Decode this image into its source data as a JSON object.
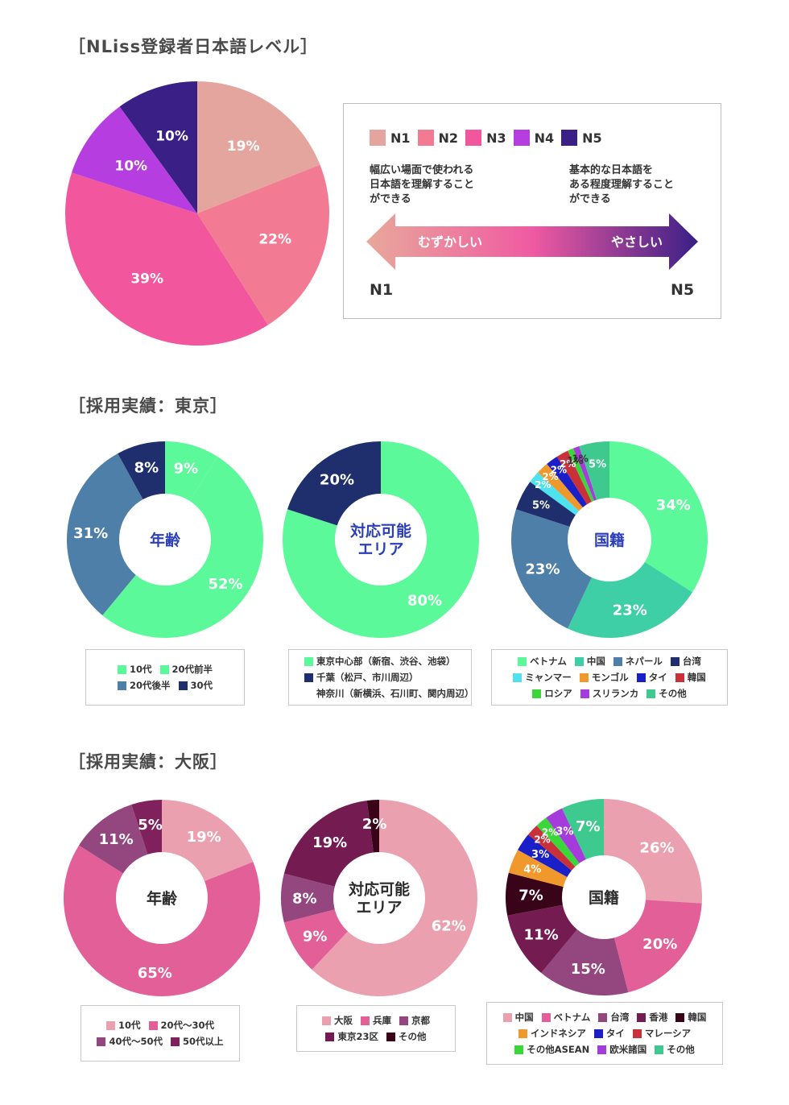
{
  "sections": {
    "level_title": "［NLiss登録者日本語レベル］",
    "tokyo_title": "［採用実績：東京］",
    "osaka_title": "［採用実績：大阪］"
  },
  "level_box": {
    "legend": [
      {
        "label": "N1",
        "color": "#e3a59d"
      },
      {
        "label": "N2",
        "color": "#f37a93"
      },
      {
        "label": "N3",
        "color": "#f2579e"
      },
      {
        "label": "N4",
        "color": "#b63ee0"
      },
      {
        "label": "N5",
        "color": "#3a1f86"
      }
    ],
    "desc_hard": "幅広い場面で使われる\n日本語を理解すること\nができる",
    "desc_easy": "基本的な日本語を\nある程度理解すること\nができる",
    "arrow_left": "むずかしい",
    "arrow_right": "やさしい",
    "end_left": "N1",
    "end_right": "N5"
  },
  "chart_data": [
    {
      "id": "level",
      "type": "pie",
      "title": "［NLiss登録者日本語レベル］",
      "categories": [
        "N1",
        "N2",
        "N3",
        "N4",
        "N5"
      ],
      "values": [
        19,
        22,
        39,
        10,
        10
      ],
      "labels": [
        "19%",
        "22%",
        "39%",
        "10%",
        "10%"
      ],
      "colors": [
        "#e3a59d",
        "#f37a93",
        "#f2579e",
        "#b63ee0",
        "#3a1f86"
      ],
      "label_colors": [
        "#fff",
        "#fff",
        "#fff",
        "#fff",
        "#fff"
      ]
    },
    {
      "id": "tokyo_age",
      "type": "pie",
      "title": "［採用実績：東京］",
      "center_label": "年齢",
      "categories": [
        "10代",
        "20代前半",
        "20代後半",
        "30代"
      ],
      "values": [
        9,
        52,
        31,
        8
      ],
      "labels": [
        "9%",
        "52%",
        "31%",
        "8%"
      ],
      "colors": [
        "#5cf99a",
        "#5cf99a",
        "#4d7fa8",
        "#1f2f6e"
      ],
      "label_colors": [
        "#fff",
        "#fff",
        "#fff",
        "#fff"
      ],
      "legend_colors": [
        "#5cf99a",
        "#5cf99a",
        "#4d7fa8",
        "#1f2f6e"
      ]
    },
    {
      "id": "tokyo_area",
      "type": "pie",
      "center_label": "対応可能\nエリア",
      "categories": [
        "東京中心部（新宿、渋谷、池袋）",
        "千葉（松戸、市川周辺）\n神奈川（新横浜、石川町、関内周辺）"
      ],
      "values": [
        80,
        20
      ],
      "labels": [
        "80%",
        "20%"
      ],
      "colors": [
        "#5cf99a",
        "#1f2f6e"
      ],
      "label_colors": [
        "#fff",
        "#fff"
      ],
      "legend_colors": [
        "#5cf99a",
        "#1f2f6e"
      ]
    },
    {
      "id": "tokyo_nationality",
      "type": "pie",
      "center_label": "国籍",
      "categories": [
        "ベトナム",
        "中国",
        "ネパール",
        "台湾",
        "ミャンマー",
        "モンゴル",
        "タイ",
        "韓国",
        "ロシア",
        "スリランカ",
        "その他"
      ],
      "values": [
        34,
        23,
        23,
        5,
        2,
        2,
        2,
        2,
        1,
        1,
        5
      ],
      "labels": [
        "34%",
        "23%",
        "23%",
        "5%",
        "2%",
        "2%",
        "2%",
        "2%",
        "1%",
        "1%",
        "5%"
      ],
      "colors": [
        "#5cf99a",
        "#3ecfa6",
        "#4d7fa8",
        "#1f2f6e",
        "#4de2ee",
        "#f0982c",
        "#1a1fc8",
        "#c9303a",
        "#3ad63a",
        "#a63bdc",
        "#3ec98e"
      ],
      "label_colors": [
        "#fff",
        "#fff",
        "#fff",
        "#fff",
        "#fff",
        "#fff",
        "#fff",
        "#fff",
        "#333",
        "#333",
        "#fff"
      ],
      "legend_colors": [
        "#5cf99a",
        "#3ecfa6",
        "#4d7fa8",
        "#1f2f6e",
        "#4de2ee",
        "#f0982c",
        "#1a1fc8",
        "#c9303a",
        "#3ad63a",
        "#a63bdc",
        "#3ec98e"
      ]
    },
    {
      "id": "osaka_age",
      "type": "pie",
      "title": "［採用実績：大阪］",
      "center_label": "年齢",
      "categories": [
        "10代",
        "20代〜30代",
        "40代〜50代",
        "50代以上"
      ],
      "values": [
        19,
        65,
        11,
        5
      ],
      "labels": [
        "19%",
        "65%",
        "11%",
        "5%"
      ],
      "colors": [
        "#eba0b0",
        "#e35f98",
        "#94467f",
        "#80205c"
      ],
      "label_colors": [
        "#fff",
        "#fff",
        "#fff",
        "#fff"
      ],
      "legend_colors": [
        "#eba0b0",
        "#e35f98",
        "#94467f",
        "#80205c"
      ]
    },
    {
      "id": "osaka_area",
      "type": "pie",
      "center_label": "対応可能\nエリア",
      "categories": [
        "大阪",
        "兵庫",
        "京都",
        "東京23区",
        "その他"
      ],
      "values": [
        62,
        9,
        8,
        19,
        2
      ],
      "labels": [
        "62%",
        "9%",
        "8%",
        "19%",
        "2%"
      ],
      "colors": [
        "#eba0b0",
        "#e35f98",
        "#94467f",
        "#741b52",
        "#3a0418"
      ],
      "label_colors": [
        "#fff",
        "#fff",
        "#fff",
        "#fff",
        "#fff"
      ],
      "legend_colors": [
        "#eba0b0",
        "#e35f98",
        "#94467f",
        "#741b52",
        "#3a0418"
      ]
    },
    {
      "id": "osaka_nationality",
      "type": "pie",
      "center_label": "国籍",
      "categories": [
        "中国",
        "ベトナム",
        "台湾",
        "香港",
        "韓国",
        "インドネシア",
        "タイ",
        "マレーシア",
        "その他ASEAN",
        "欧米諸国",
        "その他"
      ],
      "values": [
        26,
        20,
        15,
        11,
        7,
        4,
        3,
        2,
        2,
        3,
        7
      ],
      "labels": [
        "26%",
        "20%",
        "15%",
        "11%",
        "7%",
        "4%",
        "3%",
        "2%",
        "2%",
        "3%",
        "7%"
      ],
      "colors": [
        "#eba0b0",
        "#e35f98",
        "#94467f",
        "#741b52",
        "#3a0418",
        "#f0982c",
        "#1a1fc8",
        "#c9303a",
        "#3ad63a",
        "#a63bdc",
        "#3ec98e"
      ],
      "label_colors": [
        "#fff",
        "#fff",
        "#fff",
        "#fff",
        "#fff",
        "#fff",
        "#fff",
        "#fff",
        "#fff",
        "#fff",
        "#fff"
      ],
      "legend_colors": [
        "#eba0b0",
        "#e35f98",
        "#94467f",
        "#741b52",
        "#3a0418",
        "#f0982c",
        "#1a1fc8",
        "#c9303a",
        "#3ad63a",
        "#a63bdc",
        "#3ec98e"
      ]
    }
  ]
}
